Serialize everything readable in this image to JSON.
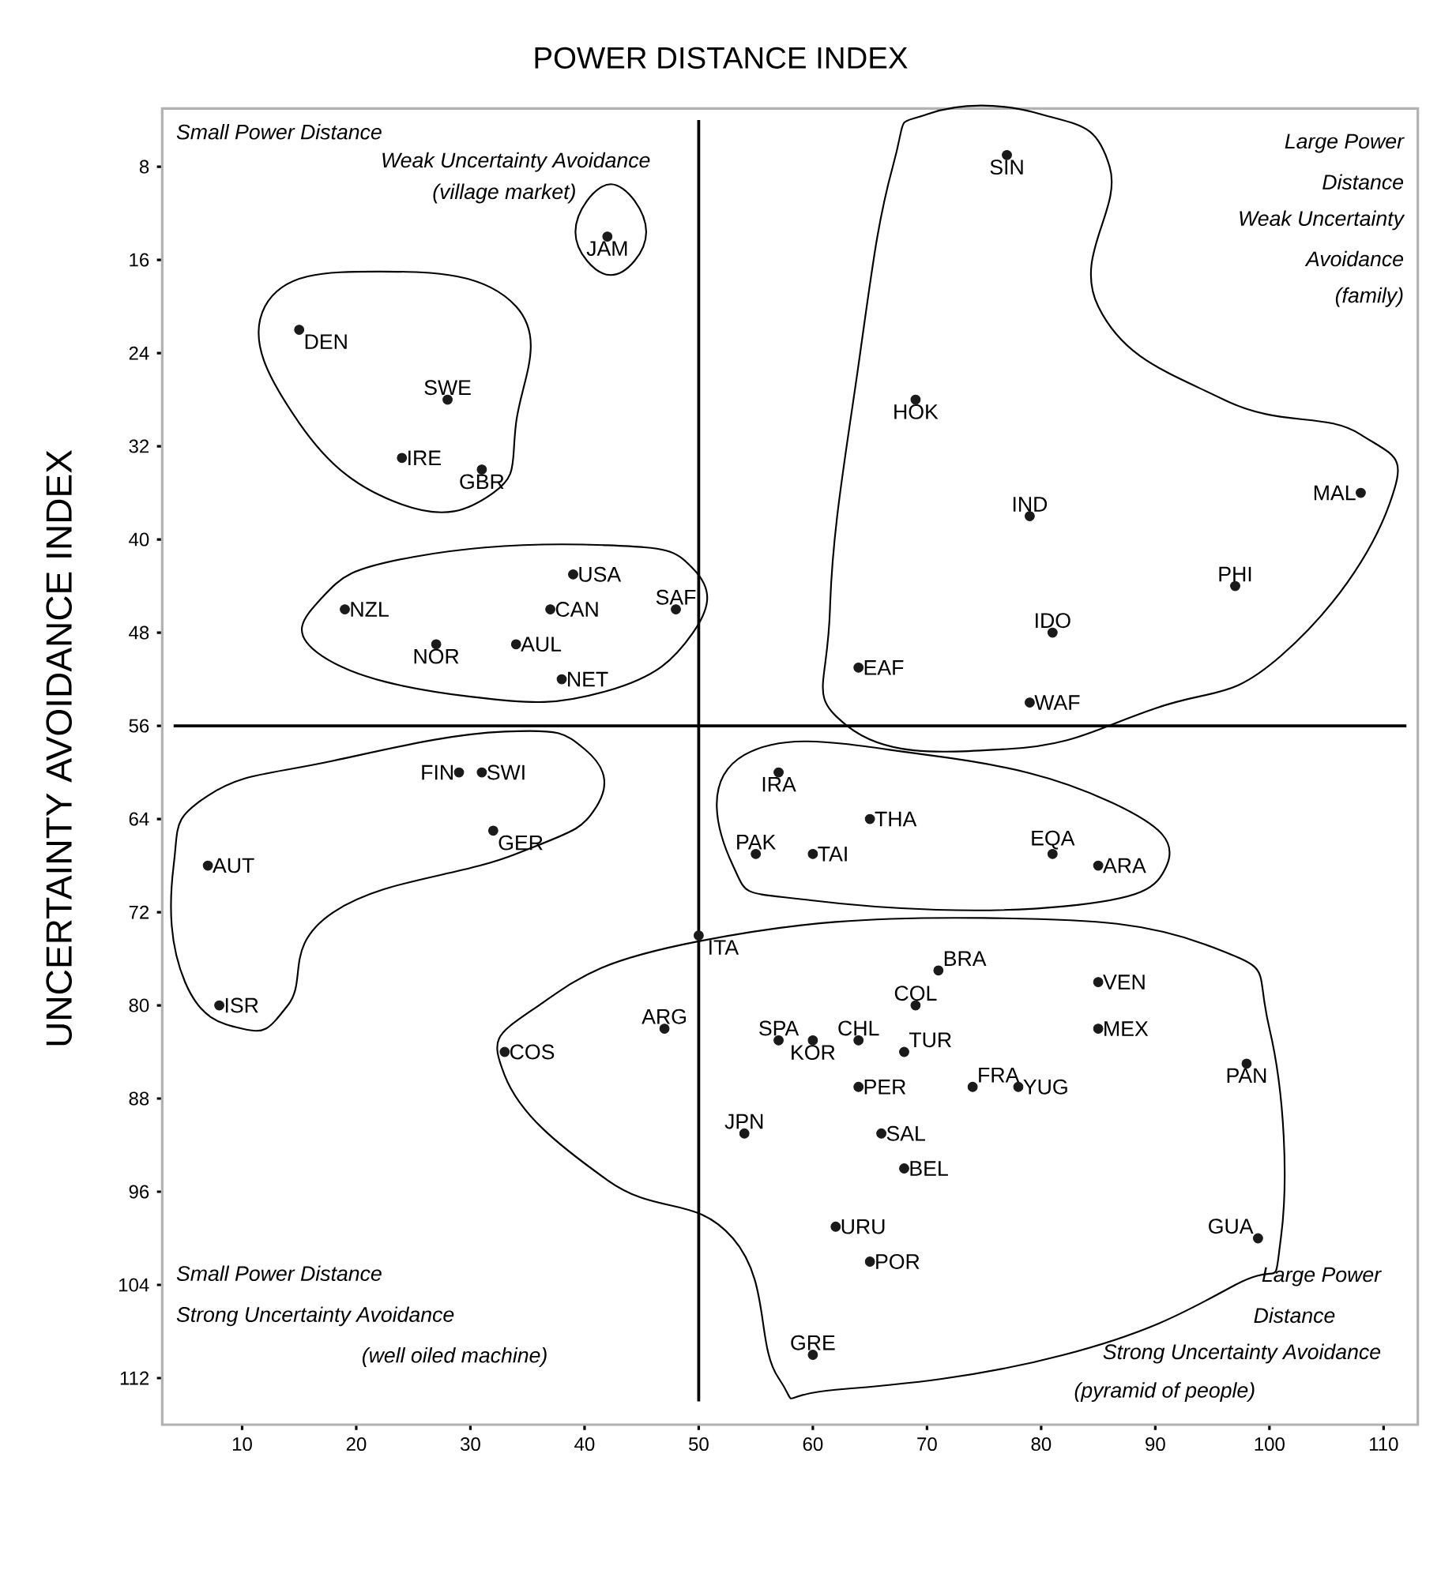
{
  "chart_data": {
    "type": "scatter",
    "title": "POWER DISTANCE INDEX",
    "ylabel": "UNCERTAINTY AVOIDANCE INDEX",
    "xlim": [
      3,
      113
    ],
    "ylim": [
      116,
      3
    ],
    "xticks": [
      10,
      20,
      30,
      40,
      50,
      60,
      70,
      80,
      90,
      100,
      110
    ],
    "yticks": [
      8,
      16,
      24,
      32,
      40,
      48,
      56,
      64,
      72,
      80,
      88,
      96,
      104,
      112
    ],
    "marker": "circle",
    "grid": false,
    "legend": false,
    "ref_lines": [
      {
        "axis": "x",
        "value": 50
      },
      {
        "axis": "y",
        "value": 56
      }
    ],
    "annotations": [
      "Small Power Distance",
      "Weak Uncertainty Avoidance",
      "(village market)",
      "Large Power",
      "Distance",
      "Weak Uncertainty",
      "Avoidance",
      "(family)",
      "Small Power Distance",
      "Strong Uncertainty Avoidance",
      "(well oiled machine)",
      "Large Power",
      "Distance",
      "Strong Uncertainty Avoidance",
      "(pyramid of people)"
    ],
    "series": [
      {
        "name": "SIN",
        "color": "#1a1a1a",
        "x": [
          77
        ],
        "values": [
          7
        ]
      },
      {
        "name": "JAM",
        "color": "#1a1a1a",
        "x": [
          42
        ],
        "values": [
          14
        ]
      },
      {
        "name": "DEN",
        "color": "#1a1a1a",
        "x": [
          15
        ],
        "values": [
          22
        ]
      },
      {
        "name": "SWE",
        "color": "#1a1a1a",
        "x": [
          28
        ],
        "values": [
          28
        ]
      },
      {
        "name": "IRE",
        "color": "#1a1a1a",
        "x": [
          24
        ],
        "values": [
          33
        ]
      },
      {
        "name": "GBR",
        "color": "#1a1a1a",
        "x": [
          31
        ],
        "values": [
          34
        ]
      },
      {
        "name": "HOK",
        "color": "#1a1a1a",
        "x": [
          69
        ],
        "values": [
          28
        ]
      },
      {
        "name": "IND",
        "color": "#1a1a1a",
        "x": [
          79
        ],
        "values": [
          38
        ]
      },
      {
        "name": "MAL",
        "color": "#1a1a1a",
        "x": [
          108
        ],
        "values": [
          36
        ]
      },
      {
        "name": "PHI",
        "color": "#1a1a1a",
        "x": [
          97
        ],
        "values": [
          44
        ]
      },
      {
        "name": "IDO",
        "color": "#1a1a1a",
        "x": [
          81
        ],
        "values": [
          48
        ]
      },
      {
        "name": "EAF",
        "color": "#1a1a1a",
        "x": [
          64
        ],
        "values": [
          51
        ]
      },
      {
        "name": "WAF",
        "color": "#1a1a1a",
        "x": [
          79
        ],
        "values": [
          54
        ]
      },
      {
        "name": "USA",
        "color": "#1a1a1a",
        "x": [
          39
        ],
        "values": [
          43
        ]
      },
      {
        "name": "SAF",
        "color": "#1a1a1a",
        "x": [
          48
        ],
        "values": [
          46
        ]
      },
      {
        "name": "CAN",
        "color": "#1a1a1a",
        "x": [
          37
        ],
        "values": [
          46
        ]
      },
      {
        "name": "NZL",
        "color": "#1a1a1a",
        "x": [
          19
        ],
        "values": [
          46
        ]
      },
      {
        "name": "NOR",
        "color": "#1a1a1a",
        "x": [
          27
        ],
        "values": [
          49
        ]
      },
      {
        "name": "AUL",
        "color": "#1a1a1a",
        "x": [
          34
        ],
        "values": [
          49
        ]
      },
      {
        "name": "NET",
        "color": "#1a1a1a",
        "x": [
          38
        ],
        "values": [
          52
        ]
      },
      {
        "name": "FIN",
        "color": "#1a1a1a",
        "x": [
          29
        ],
        "values": [
          60
        ]
      },
      {
        "name": "SWI",
        "color": "#1a1a1a",
        "x": [
          31
        ],
        "values": [
          60
        ]
      },
      {
        "name": "GER",
        "color": "#1a1a1a",
        "x": [
          32
        ],
        "values": [
          65
        ]
      },
      {
        "name": "AUT",
        "color": "#1a1a1a",
        "x": [
          7
        ],
        "values": [
          68
        ]
      },
      {
        "name": "ISR",
        "color": "#1a1a1a",
        "x": [
          8
        ],
        "values": [
          80
        ]
      },
      {
        "name": "IRA",
        "color": "#1a1a1a",
        "x": [
          57
        ],
        "values": [
          60
        ]
      },
      {
        "name": "THA",
        "color": "#1a1a1a",
        "x": [
          65
        ],
        "values": [
          64
        ]
      },
      {
        "name": "PAK",
        "color": "#1a1a1a",
        "x": [
          55
        ],
        "values": [
          67
        ]
      },
      {
        "name": "TAI",
        "color": "#1a1a1a",
        "x": [
          60
        ],
        "values": [
          67
        ]
      },
      {
        "name": "EQA",
        "color": "#1a1a1a",
        "x": [
          81
        ],
        "values": [
          67
        ]
      },
      {
        "name": "ARA",
        "color": "#1a1a1a",
        "x": [
          85
        ],
        "values": [
          68
        ]
      },
      {
        "name": "ITA",
        "color": "#1a1a1a",
        "x": [
          50
        ],
        "values": [
          74
        ]
      },
      {
        "name": "BRA",
        "color": "#1a1a1a",
        "x": [
          71
        ],
        "values": [
          77
        ]
      },
      {
        "name": "COL",
        "color": "#1a1a1a",
        "x": [
          69
        ],
        "values": [
          80
        ]
      },
      {
        "name": "VEN",
        "color": "#1a1a1a",
        "x": [
          85
        ],
        "values": [
          78
        ]
      },
      {
        "name": "MEX",
        "color": "#1a1a1a",
        "x": [
          85
        ],
        "values": [
          82
        ]
      },
      {
        "name": "ARG",
        "color": "#1a1a1a",
        "x": [
          47
        ],
        "values": [
          82
        ]
      },
      {
        "name": "COS",
        "color": "#1a1a1a",
        "x": [
          33
        ],
        "values": [
          84
        ]
      },
      {
        "name": "SPA",
        "color": "#1a1a1a",
        "x": [
          57
        ],
        "values": [
          83
        ]
      },
      {
        "name": "KOR",
        "color": "#1a1a1a",
        "x": [
          60
        ],
        "values": [
          83
        ]
      },
      {
        "name": "CHL",
        "color": "#1a1a1a",
        "x": [
          64
        ],
        "values": [
          83
        ]
      },
      {
        "name": "TUR",
        "color": "#1a1a1a",
        "x": [
          68
        ],
        "values": [
          84
        ]
      },
      {
        "name": "FRA",
        "color": "#1a1a1a",
        "x": [
          74
        ],
        "values": [
          87
        ]
      },
      {
        "name": "PER",
        "color": "#1a1a1a",
        "x": [
          64
        ],
        "values": [
          87
        ]
      },
      {
        "name": "YUG",
        "color": "#1a1a1a",
        "x": [
          78
        ],
        "values": [
          87
        ]
      },
      {
        "name": "PAN",
        "color": "#1a1a1a",
        "x": [
          98
        ],
        "values": [
          85
        ]
      },
      {
        "name": "JPN",
        "color": "#1a1a1a",
        "x": [
          54
        ],
        "values": [
          91
        ]
      },
      {
        "name": "SAL",
        "color": "#1a1a1a",
        "x": [
          66
        ],
        "values": [
          91
        ]
      },
      {
        "name": "BEL",
        "color": "#1a1a1a",
        "x": [
          68
        ],
        "values": [
          94
        ]
      },
      {
        "name": "URU",
        "color": "#1a1a1a",
        "x": [
          62
        ],
        "values": [
          99
        ]
      },
      {
        "name": "GUA",
        "color": "#1a1a1a",
        "x": [
          99
        ],
        "values": [
          100
        ]
      },
      {
        "name": "POR",
        "color": "#1a1a1a",
        "x": [
          65
        ],
        "values": [
          102
        ]
      },
      {
        "name": "GRE",
        "color": "#1a1a1a",
        "x": [
          60
        ],
        "values": [
          110
        ]
      }
    ]
  }
}
